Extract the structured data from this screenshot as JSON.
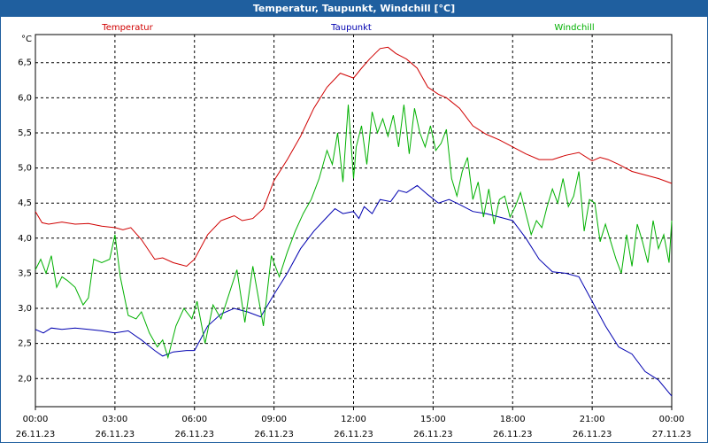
{
  "window": {
    "title": "Temperatur, Taupunkt, Windchill [°C]"
  },
  "chart_data": {
    "type": "line",
    "title": "Temperatur, Taupunkt, Windchill [°C]",
    "ylabel": "°C",
    "xlabel": "",
    "ylim": [
      1.6,
      6.9
    ],
    "xlim": [
      0,
      24
    ],
    "grid": true,
    "y_ticks": [
      "2,0",
      "2,5",
      "3,0",
      "3,5",
      "4,0",
      "4,5",
      "5,0",
      "5,5",
      "6,0",
      "6,5"
    ],
    "y_tick_values": [
      2.0,
      2.5,
      3.0,
      3.5,
      4.0,
      4.5,
      5.0,
      5.5,
      6.0,
      6.5
    ],
    "x_tick_values": [
      0,
      3,
      6,
      9,
      12,
      15,
      18,
      21,
      24
    ],
    "x_ticks": [
      {
        "time": "00:00",
        "date": "26.11.23"
      },
      {
        "time": "03:00",
        "date": "26.11.23"
      },
      {
        "time": "06:00",
        "date": "26.11.23"
      },
      {
        "time": "09:00",
        "date": "26.11.23"
      },
      {
        "time": "12:00",
        "date": "26.11.23"
      },
      {
        "time": "15:00",
        "date": "26.11.23"
      },
      {
        "time": "18:00",
        "date": "26.11.23"
      },
      {
        "time": "21:00",
        "date": "26.11.23"
      },
      {
        "time": "00:00",
        "date": "27.11.23"
      }
    ],
    "series": [
      {
        "name": "Temperatur",
        "color": "#d00000",
        "x": [
          0,
          0.25,
          0.5,
          1,
          1.5,
          2,
          2.5,
          3,
          3.3,
          3.6,
          4,
          4.5,
          4.8,
          5.2,
          5.7,
          6,
          6.5,
          7,
          7.5,
          7.8,
          8.2,
          8.6,
          9,
          9.5,
          10,
          10.5,
          11,
          11.5,
          12,
          12.3,
          12.6,
          13,
          13.3,
          13.6,
          14,
          14.4,
          14.8,
          15.2,
          15.5,
          16,
          16.5,
          17,
          17.5,
          18,
          18.5,
          19,
          19.5,
          20,
          20.5,
          21,
          21.3,
          21.6,
          22,
          22.5,
          23,
          23.5,
          24
        ],
        "values": [
          4.38,
          4.22,
          4.2,
          4.23,
          4.2,
          4.21,
          4.17,
          4.15,
          4.12,
          4.15,
          3.98,
          3.7,
          3.72,
          3.65,
          3.6,
          3.7,
          4.05,
          4.25,
          4.32,
          4.25,
          4.28,
          4.42,
          4.82,
          5.12,
          5.45,
          5.85,
          6.15,
          6.35,
          6.28,
          6.42,
          6.55,
          6.7,
          6.72,
          6.63,
          6.55,
          6.42,
          6.15,
          6.05,
          6.0,
          5.85,
          5.6,
          5.48,
          5.4,
          5.3,
          5.2,
          5.12,
          5.12,
          5.18,
          5.22,
          5.1,
          5.15,
          5.12,
          5.05,
          4.95,
          4.9,
          4.85,
          4.78
        ]
      },
      {
        "name": "Taupunkt",
        "color": "#0000b0",
        "x": [
          0,
          0.3,
          0.6,
          1,
          1.5,
          2,
          2.5,
          3,
          3.5,
          4,
          4.5,
          4.8,
          5.2,
          5.7,
          6,
          6.5,
          7,
          7.5,
          8,
          8.5,
          9,
          9.5,
          10,
          10.5,
          11,
          11.3,
          11.6,
          12,
          12.2,
          12.4,
          12.7,
          13,
          13.4,
          13.7,
          14,
          14.4,
          14.8,
          15.2,
          15.6,
          16,
          16.5,
          17,
          17.5,
          18,
          18.5,
          19,
          19.5,
          20,
          20.5,
          21,
          21.5,
          22,
          22.5,
          23,
          23.5,
          24
        ],
        "values": [
          2.7,
          2.65,
          2.72,
          2.7,
          2.72,
          2.7,
          2.68,
          2.65,
          2.68,
          2.55,
          2.4,
          2.32,
          2.38,
          2.4,
          2.4,
          2.75,
          2.92,
          3.0,
          2.95,
          2.88,
          3.2,
          3.5,
          3.85,
          4.1,
          4.3,
          4.42,
          4.35,
          4.38,
          4.28,
          4.45,
          4.35,
          4.55,
          4.52,
          4.68,
          4.65,
          4.75,
          4.62,
          4.5,
          4.55,
          4.48,
          4.38,
          4.35,
          4.3,
          4.25,
          4.0,
          3.7,
          3.52,
          3.5,
          3.45,
          3.1,
          2.75,
          2.45,
          2.35,
          2.1,
          1.98,
          1.75
        ]
      },
      {
        "name": "Windchill",
        "color": "#00b000",
        "x": [
          0,
          0.2,
          0.4,
          0.6,
          0.8,
          1,
          1.2,
          1.5,
          1.8,
          2,
          2.2,
          2.5,
          2.8,
          3,
          3.2,
          3.5,
          3.8,
          4,
          4.3,
          4.6,
          4.8,
          5,
          5.3,
          5.6,
          5.9,
          6.1,
          6.4,
          6.7,
          7,
          7.3,
          7.6,
          7.9,
          8.2,
          8.6,
          8.9,
          9.2,
          9.5,
          9.8,
          10.1,
          10.4,
          10.7,
          11,
          11.2,
          11.4,
          11.6,
          11.8,
          12,
          12.1,
          12.3,
          12.5,
          12.7,
          12.9,
          13.1,
          13.3,
          13.5,
          13.7,
          13.9,
          14.1,
          14.3,
          14.5,
          14.7,
          14.9,
          15.1,
          15.3,
          15.5,
          15.7,
          15.9,
          16.1,
          16.3,
          16.5,
          16.7,
          16.9,
          17.1,
          17.3,
          17.5,
          17.7,
          17.9,
          18.1,
          18.3,
          18.5,
          18.7,
          18.9,
          19.1,
          19.3,
          19.5,
          19.7,
          19.9,
          20.1,
          20.3,
          20.5,
          20.7,
          20.9,
          21.1,
          21.3,
          21.5,
          21.7,
          21.9,
          22.1,
          22.3,
          22.5,
          22.7,
          22.9,
          23.1,
          23.3,
          23.5,
          23.7,
          23.9,
          24
        ],
        "values": [
          3.55,
          3.7,
          3.5,
          3.75,
          3.3,
          3.45,
          3.4,
          3.3,
          3.05,
          3.15,
          3.7,
          3.65,
          3.7,
          4.05,
          3.45,
          2.9,
          2.85,
          2.95,
          2.65,
          2.45,
          2.55,
          2.3,
          2.75,
          3.0,
          2.85,
          3.1,
          2.5,
          3.05,
          2.85,
          3.2,
          3.55,
          2.8,
          3.6,
          2.75,
          3.75,
          3.45,
          3.8,
          4.1,
          4.35,
          4.55,
          4.85,
          5.25,
          5.05,
          5.5,
          4.8,
          5.9,
          4.85,
          5.3,
          5.6,
          5.05,
          5.8,
          5.5,
          5.7,
          5.45,
          5.75,
          5.3,
          5.9,
          5.2,
          5.85,
          5.5,
          5.3,
          5.6,
          5.25,
          5.35,
          5.55,
          4.85,
          4.6,
          4.95,
          5.15,
          4.55,
          4.8,
          4.3,
          4.7,
          4.2,
          4.55,
          4.6,
          4.3,
          4.45,
          4.65,
          4.35,
          4.05,
          4.25,
          4.15,
          4.45,
          4.7,
          4.5,
          4.85,
          4.45,
          4.6,
          4.95,
          4.1,
          4.55,
          4.5,
          3.95,
          4.2,
          3.95,
          3.7,
          3.5,
          4.05,
          3.6,
          4.2,
          3.95,
          3.65,
          4.25,
          3.85,
          4.05,
          3.65,
          4.25
        ]
      }
    ]
  }
}
